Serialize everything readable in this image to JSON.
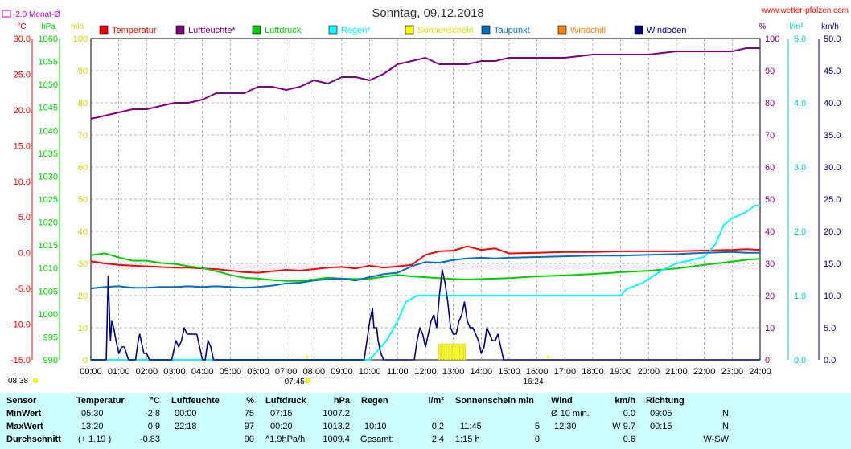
{
  "chart_data": {
    "type": "line",
    "title": "Sonntag, 09.12.2018",
    "source_label": "www.wetter-pfalzen.com",
    "month_avg_label": "-2.0 Monat-Ø",
    "axis_units": {
      "temperature": "°C",
      "pressure": "hPa",
      "min": "min",
      "percent": "%",
      "rain": "l/m²",
      "wind": "km/h"
    },
    "x_ticks": [
      "00:00",
      "01:00",
      "02:00",
      "03:00",
      "04:00",
      "05:00",
      "06:00",
      "07:00",
      "08:00",
      "09:00",
      "10:00",
      "11:00",
      "12:00",
      "13:00",
      "14:00",
      "15:00",
      "16:00",
      "17:00",
      "18:00",
      "19:00",
      "20:00",
      "21:00",
      "22:00",
      "23:00",
      "24:00"
    ],
    "sunrise": "07:45",
    "sunset": "16:24",
    "timestamp": "08:38",
    "axes": {
      "temperature": {
        "range": [
          -15,
          30
        ],
        "ticks": [
          "30.0",
          "25.0",
          "20.0",
          "15.0",
          "10.0",
          "5.0",
          "0.0",
          "-5.0",
          "-10.0",
          "-15.0"
        ]
      },
      "pressure": {
        "range": [
          990,
          1060
        ],
        "ticks": [
          "1060",
          "1055",
          "1050",
          "1045",
          "1040",
          "1035",
          "1030",
          "1025",
          "1020",
          "1015",
          "1010",
          "1005",
          "1000",
          "995",
          "990"
        ]
      },
      "minutes": {
        "range": [
          0,
          100
        ],
        "ticks": [
          "100",
          "90",
          "80",
          "70",
          "60",
          "50",
          "40",
          "30",
          "20",
          "10",
          "0"
        ]
      },
      "percent": {
        "range": [
          0,
          100
        ],
        "ticks": [
          "100",
          "90",
          "80",
          "70",
          "60",
          "50",
          "40",
          "30",
          "20",
          "10",
          "0"
        ]
      },
      "rain": {
        "range": [
          0,
          5
        ],
        "ticks": [
          "5.0",
          "4.0",
          "3.0",
          "2.0",
          "1.0",
          "0.0"
        ]
      },
      "wind": {
        "range": [
          0,
          50
        ],
        "ticks": [
          "50.0",
          "45.0",
          "40.0",
          "35.0",
          "30.0",
          "25.0",
          "20.0",
          "15.0",
          "10.0",
          "5.0",
          "0.0"
        ]
      }
    },
    "legend": [
      {
        "name": "Temperatur",
        "color": "#ff0000"
      },
      {
        "name": "Luftfeuchte*",
        "color": "#800080"
      },
      {
        "name": "Luftdruck",
        "color": "#00cc00"
      },
      {
        "name": "Regen*",
        "color": "#00ffff"
      },
      {
        "name": "Sonnenschein",
        "color": "#ffff00"
      },
      {
        "name": "Taupunkt",
        "color": "#0070c0"
      },
      {
        "name": "Windchill",
        "color": "#ff8000"
      },
      {
        "name": "Windböen",
        "color": "#000080"
      }
    ],
    "series": [
      {
        "name": "Temperatur",
        "axis": "temperature",
        "color": "#ff0000",
        "x": [
          0,
          0.5,
          1,
          1.5,
          2,
          2.5,
          3,
          3.5,
          4,
          4.5,
          5,
          5.5,
          6,
          6.5,
          7,
          7.5,
          8,
          8.5,
          9,
          9.5,
          10,
          10.5,
          11,
          11.5,
          12,
          12.5,
          13,
          13.5,
          14,
          14.5,
          15,
          16,
          17,
          18,
          19,
          20,
          21,
          22,
          23,
          23.5,
          24
        ],
        "y": [
          -1.2,
          -1.5,
          -1.7,
          -1.8,
          -1.9,
          -2.0,
          -2.1,
          -2.1,
          -2.2,
          -2.3,
          -2.5,
          -2.7,
          -2.8,
          -2.6,
          -2.4,
          -2.5,
          -2.3,
          -2.1,
          -2.0,
          -2.2,
          -1.8,
          -2.1,
          -1.9,
          -1.7,
          -0.3,
          0.2,
          0.3,
          0.9,
          0.4,
          0.6,
          -0.1,
          0.0,
          0.1,
          0.1,
          0.2,
          0.2,
          0.2,
          0.3,
          0.4,
          0.5,
          0.4
        ]
      },
      {
        "name": "Luftfeuchte*",
        "axis": "percent",
        "color": "#800080",
        "x": [
          0,
          0.5,
          1,
          1.5,
          2,
          2.5,
          3,
          3.5,
          4,
          4.5,
          5,
          5.5,
          6,
          6.5,
          7,
          7.5,
          8,
          8.5,
          9,
          9.5,
          10,
          10.5,
          11,
          11.5,
          12,
          12.5,
          13,
          13.5,
          14,
          14.5,
          15,
          16,
          17,
          18,
          19,
          20,
          21,
          22,
          23,
          23.5,
          24
        ],
        "y": [
          75,
          76,
          77,
          78,
          78,
          79,
          80,
          80,
          81,
          83,
          83,
          83,
          85,
          85,
          84,
          85,
          87,
          86,
          88,
          88,
          87,
          89,
          92,
          93,
          94,
          92,
          92,
          92,
          93,
          93,
          94,
          94,
          94,
          95,
          95,
          95,
          96,
          96,
          96,
          97,
          97
        ]
      },
      {
        "name": "Luftdruck",
        "axis": "pressure",
        "color": "#00cc00",
        "x": [
          0,
          0.5,
          1,
          1.5,
          2,
          2.5,
          3,
          3.5,
          4,
          4.5,
          5,
          5.5,
          6,
          6.5,
          7,
          7.5,
          8,
          8.5,
          9,
          9.5,
          10,
          10.5,
          11,
          11.5,
          12,
          12.5,
          13,
          13.5,
          14,
          14.5,
          15,
          16,
          17,
          18,
          19,
          20,
          21,
          22,
          23,
          23.5,
          24
        ],
        "y": [
          1012.8,
          1013.2,
          1012.3,
          1011.6,
          1011.6,
          1011.1,
          1010.9,
          1010.4,
          1010.0,
          1009.3,
          1008.5,
          1007.9,
          1007.7,
          1007.4,
          1007.2,
          1007.2,
          1007.5,
          1007.9,
          1007.7,
          1007.6,
          1007.7,
          1008.1,
          1008.5,
          1008.2,
          1008.0,
          1007.8,
          1007.6,
          1007.5,
          1007.6,
          1007.7,
          1007.8,
          1008.2,
          1008.4,
          1008.7,
          1009.1,
          1009.4,
          1009.9,
          1010.7,
          1011.4,
          1011.8,
          1012.0
        ]
      },
      {
        "name": "Regen*",
        "axis": "rain",
        "color": "#00ffff",
        "x": [
          0,
          10.0,
          10.2,
          10.6,
          11.0,
          11.3,
          11.7,
          12.0,
          14.0,
          16.0,
          18.0,
          19.0,
          19.2,
          19.8,
          20.5,
          21.0,
          22.0,
          22.4,
          22.7,
          23.0,
          23.5,
          23.8,
          24
        ],
        "y": [
          0,
          0,
          0.1,
          0.3,
          0.6,
          0.9,
          1.0,
          1.0,
          1.0,
          1.0,
          1.0,
          1.0,
          1.1,
          1.2,
          1.4,
          1.5,
          1.6,
          1.8,
          2.1,
          2.2,
          2.3,
          2.4,
          2.4
        ]
      },
      {
        "name": "Sonnenschein",
        "axis": "minutes",
        "color": "#ffff00",
        "type": "bar",
        "x": [
          12.5,
          12.6,
          12.7,
          12.8,
          12.9,
          13.0,
          13.1,
          13.2,
          13.3,
          13.4
        ],
        "y": [
          5,
          5,
          5,
          5,
          5,
          5,
          5,
          5,
          5,
          5
        ]
      },
      {
        "name": "Taupunkt",
        "axis": "temperature",
        "color": "#0070c0",
        "x": [
          0,
          0.5,
          1,
          1.5,
          2,
          2.5,
          3,
          3.5,
          4,
          4.5,
          5,
          5.5,
          6,
          6.5,
          7,
          7.5,
          8,
          8.5,
          9,
          9.5,
          10,
          10.5,
          11,
          11.5,
          12,
          12.5,
          13,
          13.5,
          14,
          14.5,
          15,
          16,
          17,
          18,
          19,
          20,
          21,
          22,
          23,
          23.5,
          24
        ],
        "y": [
          -5.0,
          -4.8,
          -4.7,
          -4.9,
          -4.9,
          -4.8,
          -4.8,
          -4.7,
          -4.8,
          -4.7,
          -4.8,
          -4.9,
          -4.8,
          -4.6,
          -4.3,
          -4.2,
          -3.9,
          -3.7,
          -3.6,
          -3.9,
          -3.4,
          -3.0,
          -2.8,
          -1.9,
          -1.3,
          -1.4,
          -1.0,
          -0.8,
          -0.7,
          -0.8,
          -0.7,
          -0.6,
          -0.5,
          -0.4,
          -0.4,
          -0.3,
          -0.2,
          0.0,
          0.1,
          0.0,
          0.0
        ]
      },
      {
        "name": "Windböen",
        "axis": "wind",
        "color": "#000080",
        "x": [
          0,
          0.55,
          0.62,
          0.7,
          0.75,
          0.82,
          0.9,
          1.0,
          1.1,
          1.2,
          1.35,
          1.5,
          1.6,
          1.7,
          1.75,
          1.8,
          1.9,
          2.0,
          2.1,
          2.3,
          2.9,
          3.0,
          3.05,
          3.15,
          3.25,
          3.35,
          3.45,
          3.6,
          3.8,
          3.9,
          4.0,
          4.1,
          4.2,
          4.3,
          4.4,
          9.8,
          9.9,
          10.0,
          10.1,
          10.15,
          10.25,
          10.3,
          10.4,
          10.5,
          11.5,
          11.6,
          11.7,
          11.8,
          11.9,
          12.0,
          12.1,
          12.2,
          12.3,
          12.4,
          12.5,
          12.6,
          12.7,
          12.8,
          12.9,
          13.0,
          13.1,
          13.2,
          13.3,
          13.4,
          13.5,
          13.6,
          13.7,
          13.8,
          13.9,
          14.0,
          14.1,
          14.2,
          14.3,
          14.4,
          14.5,
          14.6,
          14.7,
          14.8,
          14.9,
          15.0,
          24
        ],
        "y": [
          0,
          0,
          13,
          3,
          6,
          5,
          3,
          1,
          2,
          2,
          0,
          0,
          0,
          3,
          4,
          3,
          1,
          1,
          0,
          0,
          0,
          2,
          3,
          2,
          3,
          5,
          4,
          4,
          4,
          2,
          0,
          0,
          3,
          2,
          0,
          0,
          3,
          6,
          8,
          5,
          5,
          3,
          1,
          0,
          0,
          0,
          3,
          5,
          4,
          2,
          4,
          6,
          7,
          5,
          10,
          14,
          12,
          9,
          5,
          4,
          4,
          6,
          7,
          9,
          6,
          5,
          5,
          4,
          3,
          1,
          2,
          5,
          4,
          3,
          3,
          4,
          2,
          0,
          0,
          0,
          0
        ]
      }
    ],
    "reference_lines": [
      {
        "name": "Monat-Ø",
        "axis": "temperature",
        "value": -2.0,
        "color": "#c000c0",
        "style": "dashed"
      }
    ]
  },
  "stats_table": {
    "columns": [
      {
        "header": "Sensor",
        "unit": "",
        "rows": [
          [
            "MinWert",
            ""
          ],
          [
            "MaxWert",
            ""
          ],
          [
            "Durchschnitt",
            ""
          ]
        ]
      },
      {
        "header": "Temperatur",
        "unit": "°C",
        "rows": [
          [
            "05:30",
            "-2.8"
          ],
          [
            "13:20",
            "0.9"
          ],
          [
            "(+ 1.19 )",
            "-0.83"
          ]
        ]
      },
      {
        "header": "Luftfeuchte",
        "unit": "%",
        "rows": [
          [
            "00:00",
            "75"
          ],
          [
            "22:18",
            "97"
          ],
          [
            "",
            "90"
          ]
        ]
      },
      {
        "header": "Luftdruck",
        "unit": "hPa",
        "rows": [
          [
            "07:15",
            "1007.2"
          ],
          [
            "00:20",
            "1013.2"
          ],
          [
            "^1.9hPa/h",
            "1009.4"
          ]
        ]
      },
      {
        "header": "Regen",
        "unit": "l/m²",
        "rows": [
          [
            "",
            ""
          ],
          [
            "10:10",
            "0.2"
          ],
          [
            "Gesamt:",
            "2.4"
          ]
        ]
      },
      {
        "header": "Sonnenschein min",
        "unit": "",
        "rows": [
          [
            "",
            ""
          ],
          [
            "11:45",
            "5"
          ],
          [
            "1:15 h",
            "0"
          ]
        ]
      },
      {
        "header": "Wind",
        "unit": "km/h",
        "rows": [
          [
            "Ø 10 min.",
            "0.0"
          ],
          [
            "12:30",
            "W 9.7"
          ],
          [
            "",
            "0.6"
          ]
        ]
      },
      {
        "header": "Richtung",
        "unit": "",
        "rows": [
          [
            "09:05",
            "N"
          ],
          [
            "00:15",
            "N"
          ],
          [
            "",
            "W-SW"
          ]
        ]
      }
    ]
  }
}
